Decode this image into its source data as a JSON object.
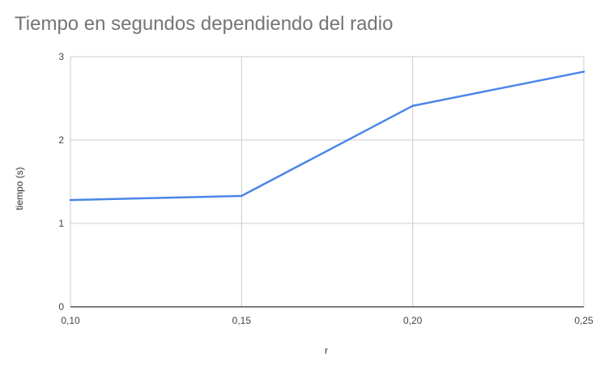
{
  "chart_data": {
    "type": "line",
    "title": "Tiempo en segundos dependiendo del radio",
    "xlabel": "r",
    "ylabel": "tiempo (s)",
    "x": [
      0.1,
      0.15,
      0.2,
      0.25
    ],
    "x_tick_labels": [
      "0,10",
      "0,15",
      "0,20",
      "0,25"
    ],
    "y_ticks": [
      0,
      1,
      2,
      3
    ],
    "y_tick_labels": [
      "0",
      "1",
      "2",
      "3"
    ],
    "xlim": [
      0.1,
      0.25
    ],
    "ylim": [
      0,
      3
    ],
    "grid": true,
    "legend": "none",
    "series": [
      {
        "values": [
          1.28,
          1.33,
          2.41,
          2.82
        ],
        "color": "#4a86e8"
      }
    ],
    "colors": {
      "grid": "#cccccc",
      "axis": "#333333",
      "title": "#757575",
      "text": "#444444"
    }
  }
}
